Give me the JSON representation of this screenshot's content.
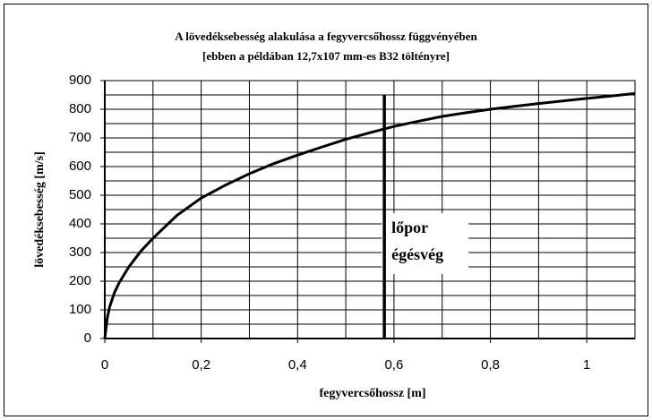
{
  "chart_data": {
    "type": "line",
    "title": "A lövedéksebesség alakulása a fegyvercsőhossz függvényében",
    "subtitle": "[ebben a példában 12,7x107 mm-es B32 töltényre]",
    "x_label": "fegyvercsőhossz [m]",
    "y_label": "lövedéksebesség [m/s]",
    "x": [
      0,
      0.005,
      0.01,
      0.02,
      0.03,
      0.05,
      0.075,
      0.1,
      0.15,
      0.2,
      0.25,
      0.3,
      0.35,
      0.4,
      0.45,
      0.5,
      0.55,
      0.6,
      0.65,
      0.7,
      0.75,
      0.8,
      0.85,
      0.9,
      0.95,
      1.0,
      1.05,
      1.1
    ],
    "series": [
      {
        "name": "lövedéksebesség",
        "color": "#000000",
        "values": [
          0,
          70,
          110,
          160,
          195,
          250,
          305,
          350,
          430,
          490,
          535,
          575,
          610,
          640,
          668,
          695,
          718,
          740,
          758,
          775,
          788,
          800,
          810,
          820,
          829,
          838,
          846,
          855
        ]
      }
    ],
    "xlim": [
      0,
      1.1
    ],
    "ylim": [
      0,
      900
    ],
    "xticks": [
      0,
      {
        "value": 0.2,
        "label": "0,2"
      },
      {
        "value": 0.4,
        "label": "0,4"
      },
      {
        "value": 0.6,
        "label": "0,6"
      },
      {
        "value": 0.8,
        "label": "0,8"
      },
      1
    ],
    "yticks": [
      0,
      100,
      200,
      300,
      400,
      500,
      600,
      700,
      800,
      900
    ],
    "xgrid": [
      0.1,
      0.2,
      0.3,
      0.4,
      0.5,
      0.6,
      0.7,
      0.8,
      0.9,
      1.0
    ],
    "ygrid": [
      50,
      100,
      150,
      200,
      250,
      300,
      350,
      400,
      450,
      500,
      550,
      600,
      650,
      700,
      750,
      800,
      850
    ],
    "grid": true,
    "marker": {
      "x": 0.58,
      "ymax": 850
    },
    "annotation": [
      "lőpor",
      "égésvég"
    ]
  }
}
